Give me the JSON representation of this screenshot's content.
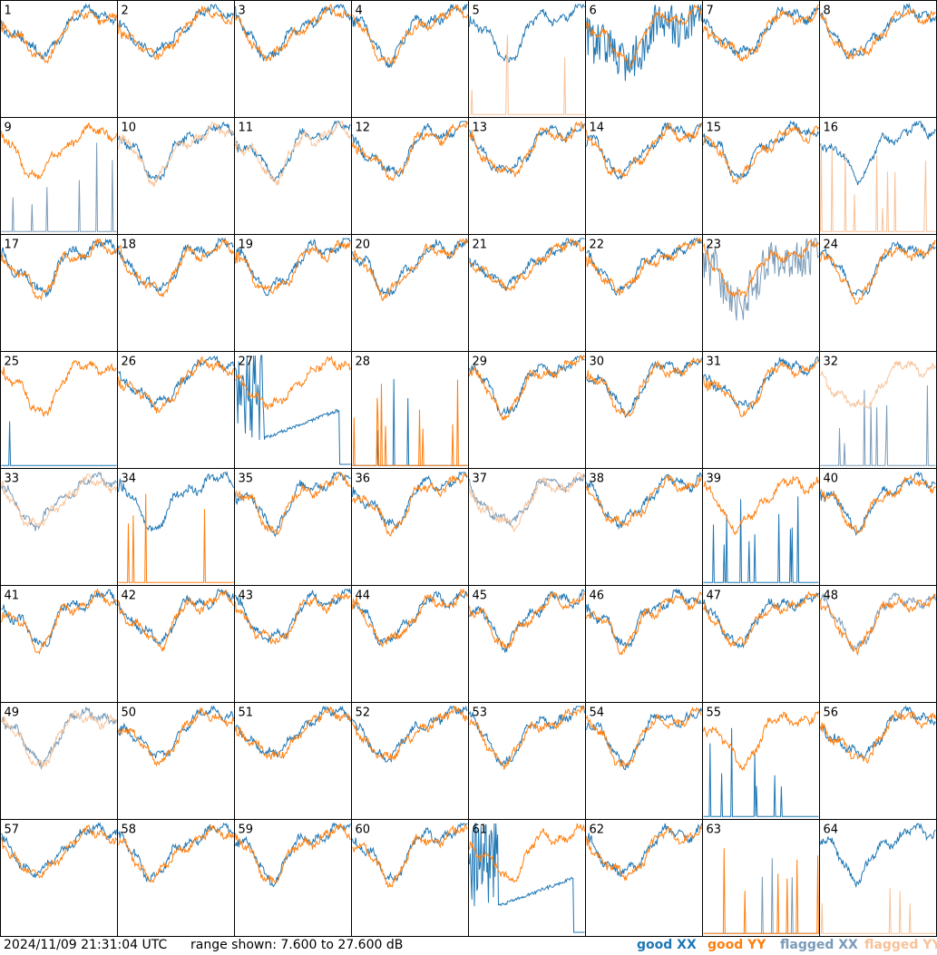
{
  "chart_data": {
    "type": "line",
    "grid": {
      "rows": 8,
      "cols": 8
    },
    "panels": [
      "1",
      "2",
      "3",
      "4",
      "5",
      "6",
      "7",
      "8",
      "9",
      "10",
      "11",
      "12",
      "13",
      "14",
      "15",
      "16",
      "17",
      "18",
      "19",
      "20",
      "21",
      "22",
      "23",
      "24",
      "25",
      "26",
      "27",
      "28",
      "29",
      "30",
      "31",
      "32",
      "33",
      "34",
      "35",
      "36",
      "37",
      "38",
      "39",
      "40",
      "41",
      "42",
      "43",
      "44",
      "45",
      "46",
      "47",
      "48",
      "49",
      "50",
      "51",
      "52",
      "53",
      "54",
      "55",
      "56",
      "57",
      "58",
      "59",
      "60",
      "61",
      "62",
      "63",
      "64"
    ],
    "yrange_db": [
      7.6,
      27.6
    ],
    "series": [
      {
        "name": "good XX",
        "color": "#1f77b4"
      },
      {
        "name": "good YY",
        "color": "#ff7f0e"
      },
      {
        "name": "flagged XX",
        "color": "#7a9bb8"
      },
      {
        "name": "flagged YY",
        "color": "#f8c298"
      }
    ],
    "panel_styles": {
      "5": {
        "xx": "good",
        "yy": "spikes-flagged"
      },
      "6": {
        "xx": "noisy",
        "yy": "good"
      },
      "9": {
        "xx": "spikes-flagged",
        "yy": "good"
      },
      "10": {
        "xx": "good",
        "yy": "flagged"
      },
      "11": {
        "xx": "good",
        "yy": "flagged"
      },
      "16": {
        "xx": "good",
        "yy": "spikes-flagged"
      },
      "23": {
        "xx": "noisy-flagged",
        "yy": "good"
      },
      "25": {
        "xx": "spike",
        "yy": "good"
      },
      "27": {
        "xx": "broken",
        "yy": "good"
      },
      "28": {
        "xx": "spikes",
        "yy": "spikes"
      },
      "32": {
        "xx": "spikes-flagged",
        "yy": "flagged"
      },
      "33": {
        "xx": "flagged",
        "yy": "flagged"
      },
      "34": {
        "xx": "good",
        "yy": "spikes"
      },
      "37": {
        "xx": "flagged",
        "yy": "flagged"
      },
      "39": {
        "xx": "spikes",
        "yy": "good"
      },
      "48": {
        "xx": "flagged",
        "yy": "good"
      },
      "49": {
        "xx": "flagged",
        "yy": "flagged"
      },
      "55": {
        "xx": "spikes",
        "yy": "good"
      },
      "61": {
        "xx": "broken",
        "yy": "good"
      },
      "63": {
        "xx": "spikes-flagged",
        "yy": "spikes"
      },
      "64": {
        "xx": "good",
        "yy": "spikes-flagged"
      }
    }
  },
  "footer": {
    "timestamp": "2024/11/09 21:31:04 UTC",
    "range": "range shown: 7.600 to 27.600 dB"
  },
  "legend": [
    {
      "label": "good XX",
      "color": "#1f77b4"
    },
    {
      "label": "good YY",
      "color": "#ff7f0e"
    },
    {
      "label": "flagged XX",
      "color": "#7a9bb8"
    },
    {
      "label": "flagged YY",
      "color": "#f8c298"
    }
  ]
}
